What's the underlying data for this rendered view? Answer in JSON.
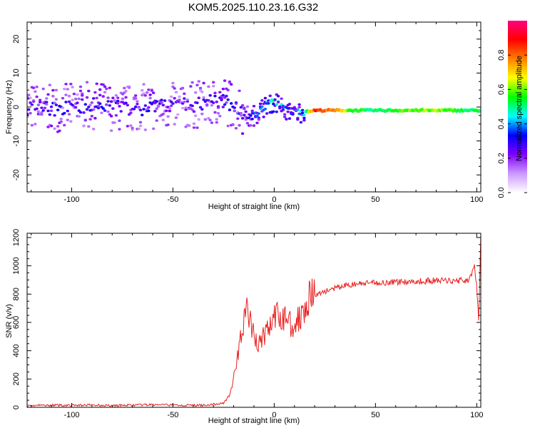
{
  "figure": {
    "title": "KOM5.2025.110.23.16.G32"
  },
  "chart_data": [
    {
      "type": "heatmap",
      "title": "",
      "xlabel": "Height of straight line (km)",
      "ylabel": "Frequency (Hz)",
      "xlim": [
        -122,
        102
      ],
      "ylim": [
        -25,
        25
      ],
      "xticks": [
        -100,
        -50,
        0,
        50,
        100
      ],
      "yticks": [
        -20,
        -10,
        0,
        10,
        20
      ],
      "grid": false,
      "colorbar": {
        "label": "Normalized spectral amplitude",
        "range": [
          0,
          1
        ],
        "ticks": [
          "0.0",
          "0.2",
          "0.4",
          "0.6",
          "0.8"
        ],
        "colors": [
          "#ffffff",
          "#cc99ff",
          "#7f00ff",
          "#0000ff",
          "#00ffff",
          "#00ff00",
          "#ffff00",
          "#ff7f00",
          "#ff0000",
          "#ff0080"
        ]
      },
      "ridge": {
        "x": [
          -122,
          -110,
          -100,
          -90,
          -80,
          -70,
          -60,
          -50,
          -40,
          -30,
          -25,
          -20,
          -15,
          -12,
          -10,
          -6,
          -3,
          0,
          3,
          6,
          10,
          15,
          20,
          30,
          40,
          50,
          60,
          70,
          80,
          90,
          100
        ],
        "freq": [
          0,
          -0.5,
          0,
          0.5,
          0,
          -0.5,
          0,
          0.5,
          0.5,
          1.5,
          2,
          0.5,
          -1.5,
          -3.5,
          -2.5,
          -0.5,
          1,
          1.5,
          0.5,
          -1,
          -1.5,
          -1.5,
          -1,
          -1,
          -1,
          -1,
          -1,
          -1,
          -1,
          -1,
          -1
        ],
        "amplitude": [
          0.25,
          0.3,
          0.25,
          0.3,
          0.3,
          0.25,
          0.3,
          0.25,
          0.25,
          0.28,
          0.3,
          0.3,
          0.3,
          0.3,
          0.35,
          0.4,
          0.45,
          0.5,
          0.4,
          0.4,
          0.35,
          0.45,
          0.85,
          0.75,
          0.55,
          0.5,
          0.55,
          0.6,
          0.6,
          0.55,
          0.5
        ]
      }
    },
    {
      "type": "line",
      "title": "",
      "xlabel": "Height of straight line (km)",
      "ylabel": "SNR (v/v)",
      "xlim": [
        -122,
        102
      ],
      "ylim": [
        0,
        1230
      ],
      "xticks": [
        -100,
        -50,
        0,
        50,
        100
      ],
      "yticks": [
        0,
        200,
        400,
        600,
        800,
        1000,
        1200
      ],
      "grid": false,
      "color": "#e82020",
      "series": [
        {
          "x": [
            -122,
            -110,
            -100,
            -90,
            -80,
            -70,
            -60,
            -50,
            -40,
            -35,
            -30,
            -25,
            -22,
            -20,
            -18,
            -16,
            -14,
            -12,
            -10,
            -8,
            -6,
            -4,
            -2,
            0,
            2,
            4,
            6,
            8,
            10,
            12,
            14,
            16,
            18,
            20,
            25,
            30,
            35,
            40,
            50,
            60,
            70,
            80,
            90,
            96,
            98,
            99,
            100,
            101,
            102
          ],
          "y": [
            12,
            15,
            14,
            16,
            13,
            15,
            18,
            16,
            14,
            15,
            20,
            30,
            90,
            200,
            350,
            550,
            700,
            600,
            500,
            450,
            480,
            540,
            580,
            620,
            640,
            620,
            660,
            600,
            570,
            620,
            700,
            760,
            780,
            790,
            820,
            840,
            860,
            870,
            880,
            885,
            890,
            895,
            895,
            900,
            950,
            1000,
            850,
            600,
            1230
          ]
        }
      ]
    }
  ]
}
